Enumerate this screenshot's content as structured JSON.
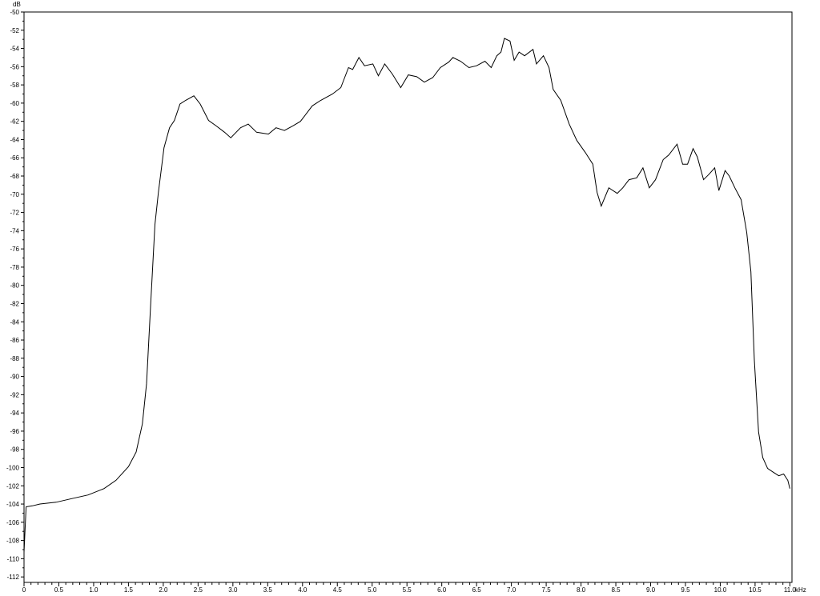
{
  "chart_data": {
    "type": "line",
    "title": "",
    "xlabel": "kHz",
    "ylabel": "dB",
    "xlim": [
      0,
      11.03
    ],
    "ylim": [
      -112.6,
      -50
    ],
    "x_ticks": [
      0,
      0.5,
      1.0,
      1.5,
      2.0,
      2.5,
      3.0,
      3.5,
      4.0,
      4.5,
      5.0,
      5.5,
      6.0,
      6.5,
      7.0,
      7.5,
      8.0,
      8.5,
      9.0,
      9.5,
      10.0,
      10.5,
      11.0
    ],
    "x_tick_labels": [
      "0",
      "0.5",
      "1.0",
      "1.5",
      "2.0",
      "2.5",
      "3.0",
      "3.5",
      "4.0",
      "4.5",
      "5.0",
      "5.5",
      "6.0",
      "6.5",
      "7.0",
      "7.5",
      "8.0",
      "8.5",
      "9.0",
      "9.5",
      "10.0",
      "10.5",
      "11.0"
    ],
    "y_ticks": [
      -50,
      -52,
      -54,
      -56,
      -58,
      -60,
      -62,
      -64,
      -66,
      -68,
      -70,
      -72,
      -74,
      -76,
      -78,
      -80,
      -82,
      -84,
      -86,
      -88,
      -90,
      -92,
      -94,
      -96,
      -98,
      -100,
      -102,
      -104,
      -106,
      -108,
      -110,
      -112
    ],
    "grid": false,
    "line_color": "#000000",
    "series": [
      {
        "x": [
          0,
          0.03,
          0.12,
          0.23,
          0.46,
          0.69,
          0.92,
          1.15,
          1.32,
          1.5,
          1.61,
          1.7,
          1.76,
          1.82,
          1.88,
          1.93,
          2.01,
          2.09,
          2.16,
          2.24,
          2.32,
          2.44,
          2.53,
          2.65,
          2.76,
          2.88,
          2.97,
          3.11,
          3.22,
          3.34,
          3.51,
          3.62,
          3.74,
          3.86,
          3.97,
          4.14,
          4.26,
          4.43,
          4.55,
          4.66,
          4.72,
          4.81,
          4.89,
          5.01,
          5.09,
          5.18,
          5.29,
          5.41,
          5.52,
          5.64,
          5.75,
          5.87,
          5.98,
          6.1,
          6.16,
          6.27,
          6.39,
          6.5,
          6.62,
          6.71,
          6.79,
          6.85,
          6.9,
          6.98,
          7.04,
          7.11,
          7.19,
          7.31,
          7.36,
          7.46,
          7.54,
          7.6,
          7.71,
          7.83,
          7.94,
          8.06,
          8.17,
          8.23,
          8.29,
          8.4,
          8.52,
          8.6,
          8.69,
          8.8,
          8.89,
          8.98,
          9.07,
          9.18,
          9.26,
          9.38,
          9.46,
          9.53,
          9.61,
          9.67,
          9.76,
          9.84,
          9.92,
          9.98,
          10.07,
          10.13,
          10.21,
          10.3,
          10.38,
          10.44,
          10.49,
          10.55,
          10.61,
          10.68,
          10.76,
          10.84,
          10.91,
          10.97,
          11.0
        ],
        "y": [
          -109.3,
          -104.3,
          -104.2,
          -104.0,
          -103.8,
          -103.4,
          -103.0,
          -102.3,
          -101.4,
          -99.9,
          -98.3,
          -95.2,
          -90.8,
          -82.0,
          -73.3,
          -69.8,
          -64.9,
          -62.7,
          -61.9,
          -60.1,
          -59.7,
          -59.2,
          -60.1,
          -61.9,
          -62.5,
          -63.2,
          -63.8,
          -62.7,
          -62.3,
          -63.2,
          -63.4,
          -62.7,
          -63.0,
          -62.5,
          -62.0,
          -60.3,
          -59.7,
          -59.0,
          -58.3,
          -56.1,
          -56.3,
          -55.0,
          -55.9,
          -55.7,
          -57.0,
          -55.7,
          -56.8,
          -58.3,
          -56.9,
          -57.1,
          -57.7,
          -57.2,
          -56.1,
          -55.5,
          -55.0,
          -55.4,
          -56.1,
          -55.9,
          -55.4,
          -56.1,
          -54.8,
          -54.4,
          -52.9,
          -53.2,
          -55.3,
          -54.4,
          -54.8,
          -54.1,
          -55.7,
          -54.8,
          -56.1,
          -58.5,
          -59.7,
          -62.3,
          -64.1,
          -65.4,
          -66.7,
          -69.8,
          -71.3,
          -69.3,
          -69.9,
          -69.3,
          -68.4,
          -68.2,
          -67.1,
          -69.3,
          -68.4,
          -66.2,
          -65.7,
          -64.5,
          -66.7,
          -66.7,
          -65.0,
          -65.9,
          -68.4,
          -67.8,
          -67.1,
          -69.6,
          -67.4,
          -68.0,
          -69.3,
          -70.6,
          -74.2,
          -78.5,
          -88.2,
          -96.1,
          -98.9,
          -100.1,
          -100.5,
          -100.9,
          -100.7,
          -101.4,
          -102.3
        ]
      }
    ]
  }
}
